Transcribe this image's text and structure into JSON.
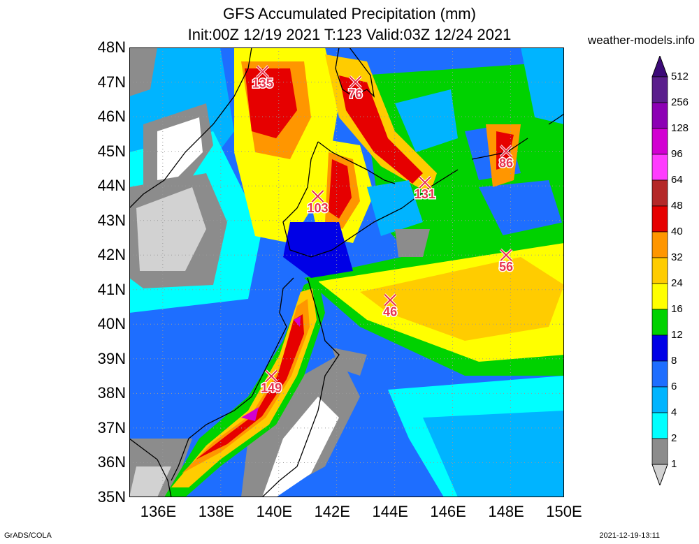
{
  "header": {
    "title_line1": "GFS Accumulated Precipitation (mm)",
    "title_line2": "Init:00Z 12/19 2021 T:123 Valid:03Z 12/24 2021",
    "site": "weather-models.info"
  },
  "footer": {
    "left": "GrADS/COLA",
    "right": "2021-12-19-13:11"
  },
  "axes": {
    "lat_labels": [
      "48N",
      "47N",
      "46N",
      "45N",
      "44N",
      "43N",
      "42N",
      "41N",
      "40N",
      "39N",
      "38N",
      "37N",
      "36N",
      "35N"
    ],
    "lon_labels": [
      "136E",
      "138E",
      "140E",
      "142E",
      "144E",
      "146E",
      "148E",
      "150E"
    ]
  },
  "colorbar": {
    "labels": [
      "512",
      "256",
      "128",
      "96",
      "64",
      "48",
      "40",
      "32",
      "24",
      "16",
      "12",
      "8",
      "6",
      "4",
      "2",
      "1"
    ],
    "colors": [
      "#5a1e8c",
      "#8c00b4",
      "#d200d2",
      "#ff3cff",
      "#b42828",
      "#e60000",
      "#ff9600",
      "#ffcc00",
      "#ffff00",
      "#00d200",
      "#0000e6",
      "#1e6eff",
      "#00b4ff",
      "#00ffff",
      "#8c8c8c",
      "#d2d2d2"
    ]
  },
  "markers": [
    {
      "label": "135",
      "lon": 139.6,
      "lat": 47.3
    },
    {
      "label": "76",
      "lon": 142.8,
      "lat": 47.0
    },
    {
      "label": "86",
      "lon": 148.0,
      "lat": 45.0
    },
    {
      "label": "103",
      "lon": 141.5,
      "lat": 43.7
    },
    {
      "label": "131",
      "lon": 145.2,
      "lat": 44.1
    },
    {
      "label": "56",
      "lon": 148.0,
      "lat": 42.0
    },
    {
      "label": "46",
      "lon": 144.0,
      "lat": 40.7
    },
    {
      "label": "149",
      "lon": 139.9,
      "lat": 38.5
    }
  ]
}
